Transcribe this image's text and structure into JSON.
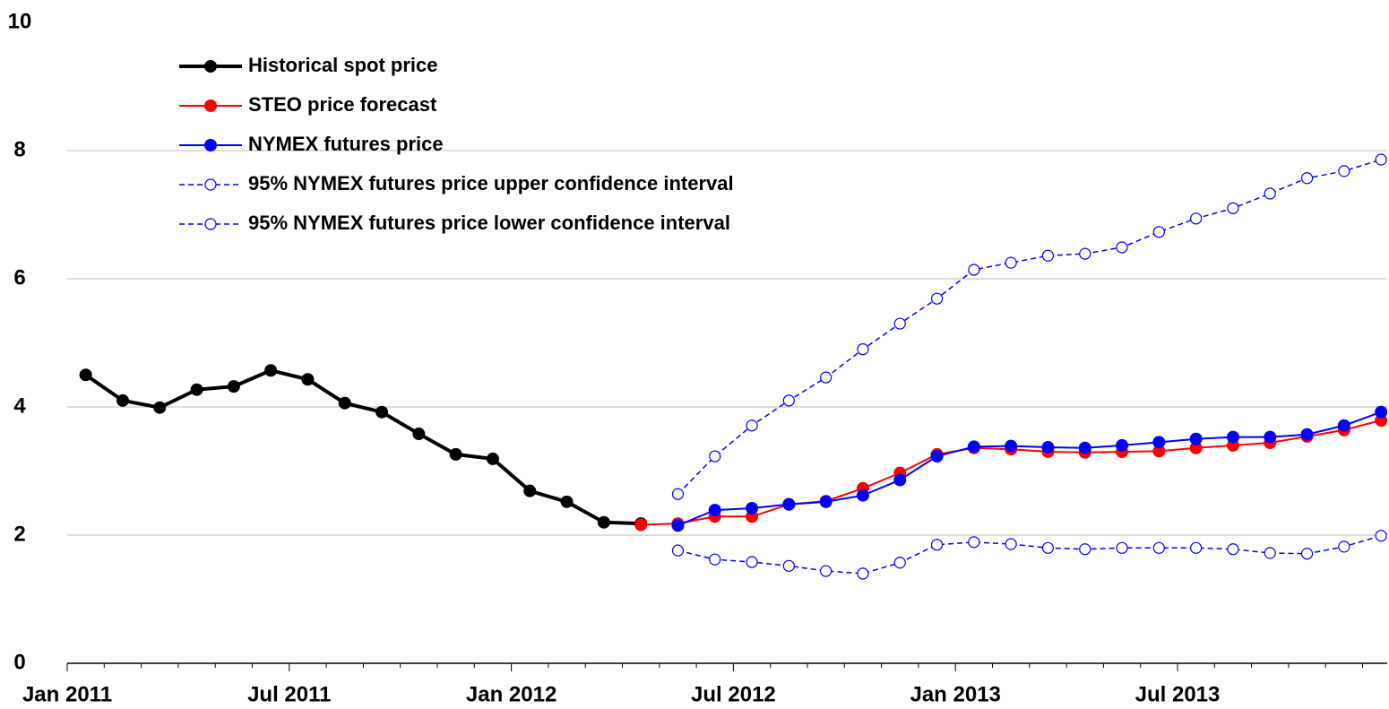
{
  "chart_data": {
    "type": "line",
    "categories": [
      "Jan 2011",
      null,
      null,
      null,
      null,
      null,
      "Jul 2011",
      null,
      null,
      null,
      null,
      null,
      "Jan 2012",
      null,
      null,
      null,
      null,
      null,
      "Jul 2012",
      null,
      null,
      null,
      null,
      null,
      "Jan 2013",
      null,
      null,
      null,
      null,
      null,
      "Jul 2013",
      null,
      null,
      null,
      null,
      null
    ],
    "ylim": [
      0,
      10
    ],
    "yticks": [
      0,
      2,
      4,
      6,
      8,
      10
    ],
    "grid": true,
    "legend": "upper left",
    "series": [
      {
        "name": "Historical spot price",
        "color": "#000000",
        "line_width": 4,
        "line_style": "solid",
        "marker_fill": "filled",
        "values": [
          4.5,
          4.1,
          3.99,
          4.27,
          4.32,
          4.57,
          4.43,
          4.06,
          3.92,
          3.58,
          3.26,
          3.19,
          2.69,
          2.52,
          2.2,
          2.18,
          null,
          null,
          null,
          null,
          null,
          null,
          null,
          null,
          null,
          null,
          null,
          null,
          null,
          null,
          null,
          null,
          null,
          null,
          null,
          null
        ]
      },
      {
        "name": "STEO price forecast",
        "color": "#ff0000",
        "line_width": 2,
        "line_style": "solid",
        "marker_fill": "filled",
        "values": [
          null,
          null,
          null,
          null,
          null,
          null,
          null,
          null,
          null,
          null,
          null,
          null,
          null,
          null,
          null,
          2.16,
          2.18,
          2.29,
          2.29,
          2.48,
          2.53,
          2.73,
          2.97,
          3.26,
          3.36,
          3.34,
          3.3,
          3.29,
          3.3,
          3.31,
          3.36,
          3.4,
          3.44,
          3.54,
          3.64,
          3.79
        ]
      },
      {
        "name": "NYMEX futures price",
        "color": "#0000ff",
        "line_width": 2,
        "line_style": "solid",
        "marker_fill": "filled",
        "values": [
          null,
          null,
          null,
          null,
          null,
          null,
          null,
          null,
          null,
          null,
          null,
          null,
          null,
          null,
          null,
          null,
          2.15,
          2.39,
          2.42,
          2.48,
          2.52,
          2.62,
          2.86,
          3.23,
          3.38,
          3.39,
          3.37,
          3.36,
          3.4,
          3.45,
          3.5,
          3.53,
          3.53,
          3.57,
          3.71,
          3.92
        ]
      },
      {
        "name": "95% NYMEX futures price upper confidence interval",
        "color": "#0000ff",
        "line_width": 1.5,
        "line_style": "dashed",
        "marker_fill": "none",
        "values": [
          null,
          null,
          null,
          null,
          null,
          null,
          null,
          null,
          null,
          null,
          null,
          null,
          null,
          null,
          null,
          null,
          2.64,
          3.23,
          3.71,
          4.1,
          4.46,
          4.9,
          5.3,
          5.69,
          6.14,
          6.25,
          6.36,
          6.39,
          6.49,
          6.73,
          6.94,
          7.1,
          7.33,
          7.57,
          7.68,
          7.86
        ]
      },
      {
        "name": "95% NYMEX futures price lower confidence interval",
        "color": "#0000ff",
        "line_width": 1.5,
        "line_style": "dashed",
        "marker_fill": "none",
        "values": [
          null,
          null,
          null,
          null,
          null,
          null,
          null,
          null,
          null,
          null,
          null,
          null,
          null,
          null,
          null,
          null,
          1.76,
          1.62,
          1.58,
          1.52,
          1.44,
          1.4,
          1.57,
          1.85,
          1.89,
          1.86,
          1.8,
          1.78,
          1.8,
          1.8,
          1.8,
          1.78,
          1.72,
          1.71,
          1.82,
          1.99
        ]
      }
    ]
  }
}
